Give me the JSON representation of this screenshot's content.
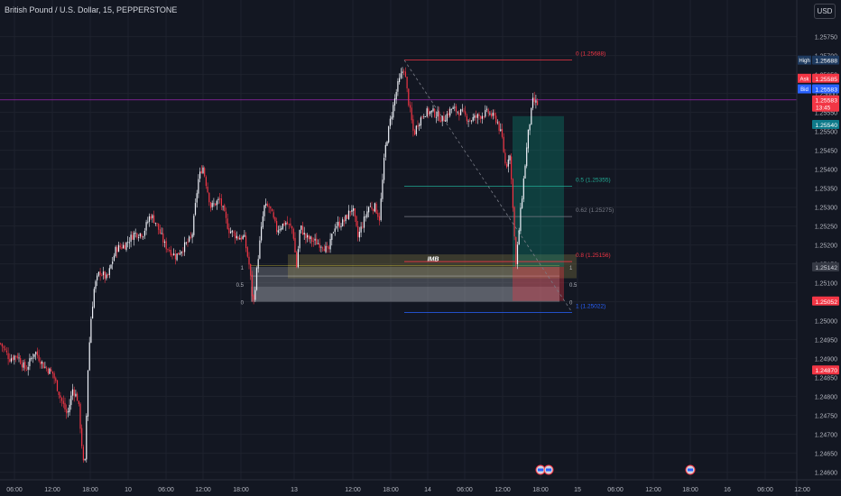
{
  "header": {
    "symbol_title": "British Pound / U.S. Dollar, 15, PEPPERSTONE",
    "currency_button": "USD"
  },
  "chart_data": {
    "type": "candlestick",
    "symbol": "GBPUSD",
    "interval": "15",
    "ylim": [
      1.2458,
      1.2578
    ],
    "y_ticks": [
      "1.24600",
      "1.24650",
      "1.24700",
      "1.24750",
      "1.24800",
      "1.24850",
      "1.24900",
      "1.24950",
      "1.25000",
      "1.25050",
      "1.25100",
      "1.25150",
      "1.25200",
      "1.25250",
      "1.25300",
      "1.25350",
      "1.25400",
      "1.25450",
      "1.25500",
      "1.25550",
      "1.25600",
      "1.25650",
      "1.25700",
      "1.25750"
    ],
    "x_ticks": [
      {
        "label": "06:00",
        "x": 16
      },
      {
        "label": "12:00",
        "x": 58
      },
      {
        "label": "18:00",
        "x": 100
      },
      {
        "label": "10",
        "x": 142
      },
      {
        "label": "06:00",
        "x": 184
      },
      {
        "label": "12:00",
        "x": 225
      },
      {
        "label": "18:00",
        "x": 267
      },
      {
        "label": "13",
        "x": 326
      },
      {
        "label": "12:00",
        "x": 391
      },
      {
        "label": "18:00",
        "x": 433
      },
      {
        "label": "14",
        "x": 474
      },
      {
        "label": "06:00",
        "x": 515
      },
      {
        "label": "12:00",
        "x": 557
      },
      {
        "label": "18:00",
        "x": 599
      },
      {
        "label": "15",
        "x": 640
      },
      {
        "label": "06:00",
        "x": 682
      },
      {
        "label": "12:00",
        "x": 724
      },
      {
        "label": "18:00",
        "x": 765
      },
      {
        "label": "16",
        "x": 806
      },
      {
        "label": "06:00",
        "x": 848
      },
      {
        "label": "12:00",
        "x": 889
      }
    ],
    "price_labels": [
      {
        "name": "high-label",
        "tag": "High",
        "value": "1.25688",
        "price": 1.25688,
        "bg": "#1e3a5f",
        "color": "#ffffff"
      },
      {
        "name": "ask-label",
        "tag": "Ask",
        "value": "1.25585",
        "price": 1.2564,
        "bg": "#f23645",
        "color": "#ffffff"
      },
      {
        "name": "bid-label",
        "tag": "Bid",
        "value": "1.25583",
        "price": 1.25612,
        "bg": "#2962ff",
        "color": "#ffffff"
      },
      {
        "name": "last-price-label",
        "tag": "",
        "value": "1.25583",
        "price": 1.25583,
        "bg": "#f23645",
        "color": "#ffffff",
        "sub": "13:45"
      },
      {
        "name": "tp-label",
        "tag": "",
        "value": "1.25540",
        "price": 1.25518,
        "bg": "#0e7a8a",
        "color": "#ffffff"
      },
      {
        "name": "marker-label",
        "tag": "",
        "value": "1.25142",
        "price": 1.25142,
        "bg": "#363a45",
        "color": "#d1d4dc"
      },
      {
        "name": "sl-label",
        "tag": "",
        "value": "1.25052",
        "price": 1.25052,
        "bg": "#f23645",
        "color": "#ffffff"
      },
      {
        "name": "low-label",
        "tag": "",
        "value": "1.24870",
        "price": 1.2487,
        "bg": "#f23645",
        "color": "#ffffff"
      }
    ],
    "fib_levels": [
      {
        "label": "0 (1.25688)",
        "price": 1.25688,
        "color": "#f23645"
      },
      {
        "label": "0.5 (1.25355)",
        "price": 1.25355,
        "color": "#22ab94"
      },
      {
        "label": "0.62 (1.25275)",
        "price": 1.25275,
        "color": "#787b86"
      },
      {
        "label": "0.8 (1.25156)",
        "price": 1.25156,
        "color": "#f23645"
      },
      {
        "label": "1 (1.25022)",
        "price": 1.25022,
        "color": "#2962ff"
      }
    ],
    "imbalance_label": "IMB",
    "box_labels": {
      "left_top": "1",
      "left_mid": "0.5",
      "left_bottom": "0",
      "right_top": "1",
      "right_mid": "0.5",
      "right_bottom": "0"
    },
    "series_up_color": "#f0f3fa",
    "series_down_color": "#f23645",
    "price_line_color": "#9c27b0",
    "accent_tp": "#089981",
    "accent_sl": "#f23645",
    "anchors": [
      [
        0,
        1.2494
      ],
      [
        10,
        1.249
      ],
      [
        18,
        1.2491
      ],
      [
        28,
        1.2487
      ],
      [
        38,
        1.2492
      ],
      [
        48,
        1.2488
      ],
      [
        58,
        1.2486
      ],
      [
        66,
        1.248
      ],
      [
        74,
        1.2475
      ],
      [
        80,
        1.2482
      ],
      [
        86,
        1.2479
      ],
      [
        93,
        1.2459
      ],
      [
        97,
        1.2488
      ],
      [
        100,
        1.25
      ],
      [
        104,
        1.2509
      ],
      [
        110,
        1.2513
      ],
      [
        118,
        1.2511
      ],
      [
        128,
        1.2519
      ],
      [
        138,
        1.252
      ],
      [
        148,
        1.2523
      ],
      [
        158,
        1.2523
      ],
      [
        166,
        1.2528
      ],
      [
        172,
        1.2526
      ],
      [
        182,
        1.252
      ],
      [
        194,
        1.2517
      ],
      [
        205,
        1.252
      ],
      [
        212,
        1.2522
      ],
      [
        219,
        1.2537
      ],
      [
        224,
        1.2541
      ],
      [
        233,
        1.253
      ],
      [
        243,
        1.2532
      ],
      [
        253,
        1.2524
      ],
      [
        263,
        1.2522
      ],
      [
        270,
        1.2522
      ],
      [
        276,
        1.2514
      ],
      [
        280,
        1.2504
      ],
      [
        286,
        1.2518
      ],
      [
        292,
        1.253
      ],
      [
        298,
        1.253
      ],
      [
        306,
        1.2524
      ],
      [
        316,
        1.2526
      ],
      [
        324,
        1.2524
      ],
      [
        328,
        1.2514
      ],
      [
        332,
        1.2525
      ],
      [
        338,
        1.2522
      ],
      [
        347,
        1.2521
      ],
      [
        357,
        1.252
      ],
      [
        363,
        1.2518
      ],
      [
        370,
        1.2525
      ],
      [
        380,
        1.2526
      ],
      [
        390,
        1.253
      ],
      [
        396,
        1.2522
      ],
      [
        402,
        1.2526
      ],
      [
        408,
        1.253
      ],
      [
        415,
        1.253
      ],
      [
        420,
        1.2527
      ],
      [
        426,
        1.2545
      ],
      [
        432,
        1.2553
      ],
      [
        440,
        1.2562
      ],
      [
        447,
        1.2567
      ],
      [
        452,
        1.2558
      ],
      [
        458,
        1.2549
      ],
      [
        462,
        1.2552
      ],
      [
        470,
        1.2555
      ],
      [
        480,
        1.2555
      ],
      [
        490,
        1.2553
      ],
      [
        500,
        1.2556
      ],
      [
        510,
        1.2555
      ],
      [
        520,
        1.2553
      ],
      [
        530,
        1.2554
      ],
      [
        540,
        1.2555
      ],
      [
        550,
        1.2553
      ],
      [
        556,
        1.2548
      ],
      [
        560,
        1.254
      ],
      [
        564,
        1.2545
      ],
      [
        568,
        1.253
      ],
      [
        571,
        1.2514
      ],
      [
        576,
        1.2528
      ],
      [
        580,
        1.2538
      ],
      [
        585,
        1.255
      ],
      [
        590,
        1.2558
      ],
      [
        596,
        1.2557
      ]
    ]
  }
}
